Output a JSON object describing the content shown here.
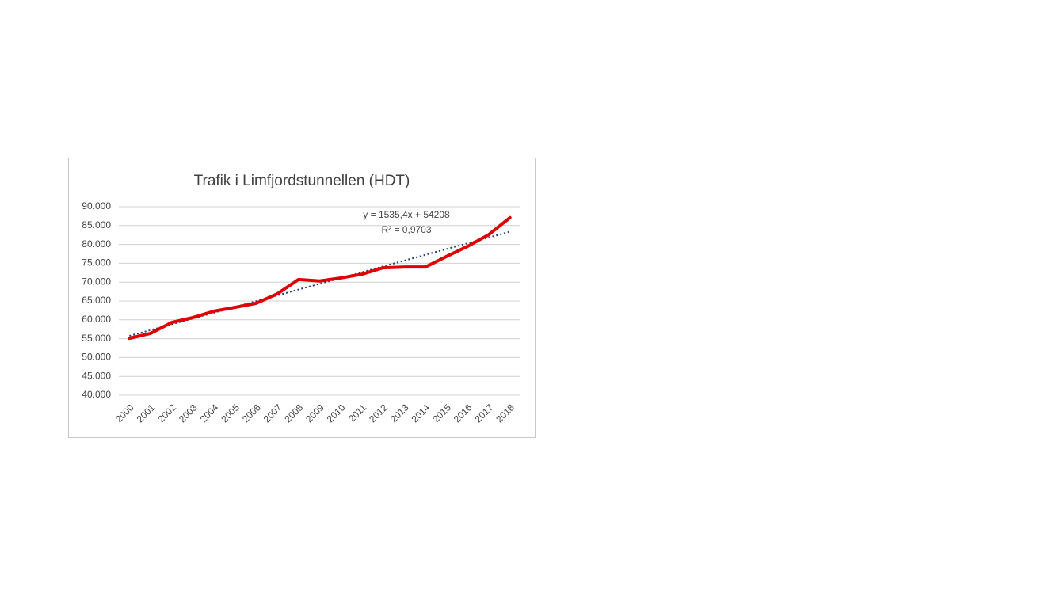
{
  "chart_data": {
    "type": "line",
    "title": "Trafik i Limfjordstunnellen (HDT)",
    "categories": [
      "2000",
      "2001",
      "2002",
      "2003",
      "2004",
      "2005",
      "2006",
      "2007",
      "2008",
      "2009",
      "2010",
      "2011",
      "2012",
      "2013",
      "2014",
      "2015",
      "2016",
      "2017",
      "2018"
    ],
    "series": [
      {
        "name": "HDT",
        "color": "#e00000",
        "values": [
          55100,
          56400,
          59300,
          60600,
          62300,
          63300,
          64400,
          66900,
          70700,
          70300,
          71100,
          72100,
          73800,
          74000,
          74000,
          76800,
          79500,
          82600,
          87100
        ]
      }
    ],
    "trendline": {
      "slope": 1535.4,
      "intercept": 54208,
      "color": "#1f3f7a",
      "equation": "y = 1535,4x + 54208",
      "r2_label": "R² = 0,9703"
    },
    "ylim": [
      40000,
      90000
    ],
    "yticks": [
      {
        "value": 40000,
        "label": "40.000"
      },
      {
        "value": 45000,
        "label": "45.000"
      },
      {
        "value": 50000,
        "label": "50.000"
      },
      {
        "value": 55000,
        "label": "55.000"
      },
      {
        "value": 60000,
        "label": "60.000"
      },
      {
        "value": 65000,
        "label": "65.000"
      },
      {
        "value": 70000,
        "label": "70.000"
      },
      {
        "value": 75000,
        "label": "75.000"
      },
      {
        "value": 80000,
        "label": "80.000"
      },
      {
        "value": 85000,
        "label": "85.000"
      },
      {
        "value": 90000,
        "label": "90.000"
      }
    ],
    "grid": true
  }
}
